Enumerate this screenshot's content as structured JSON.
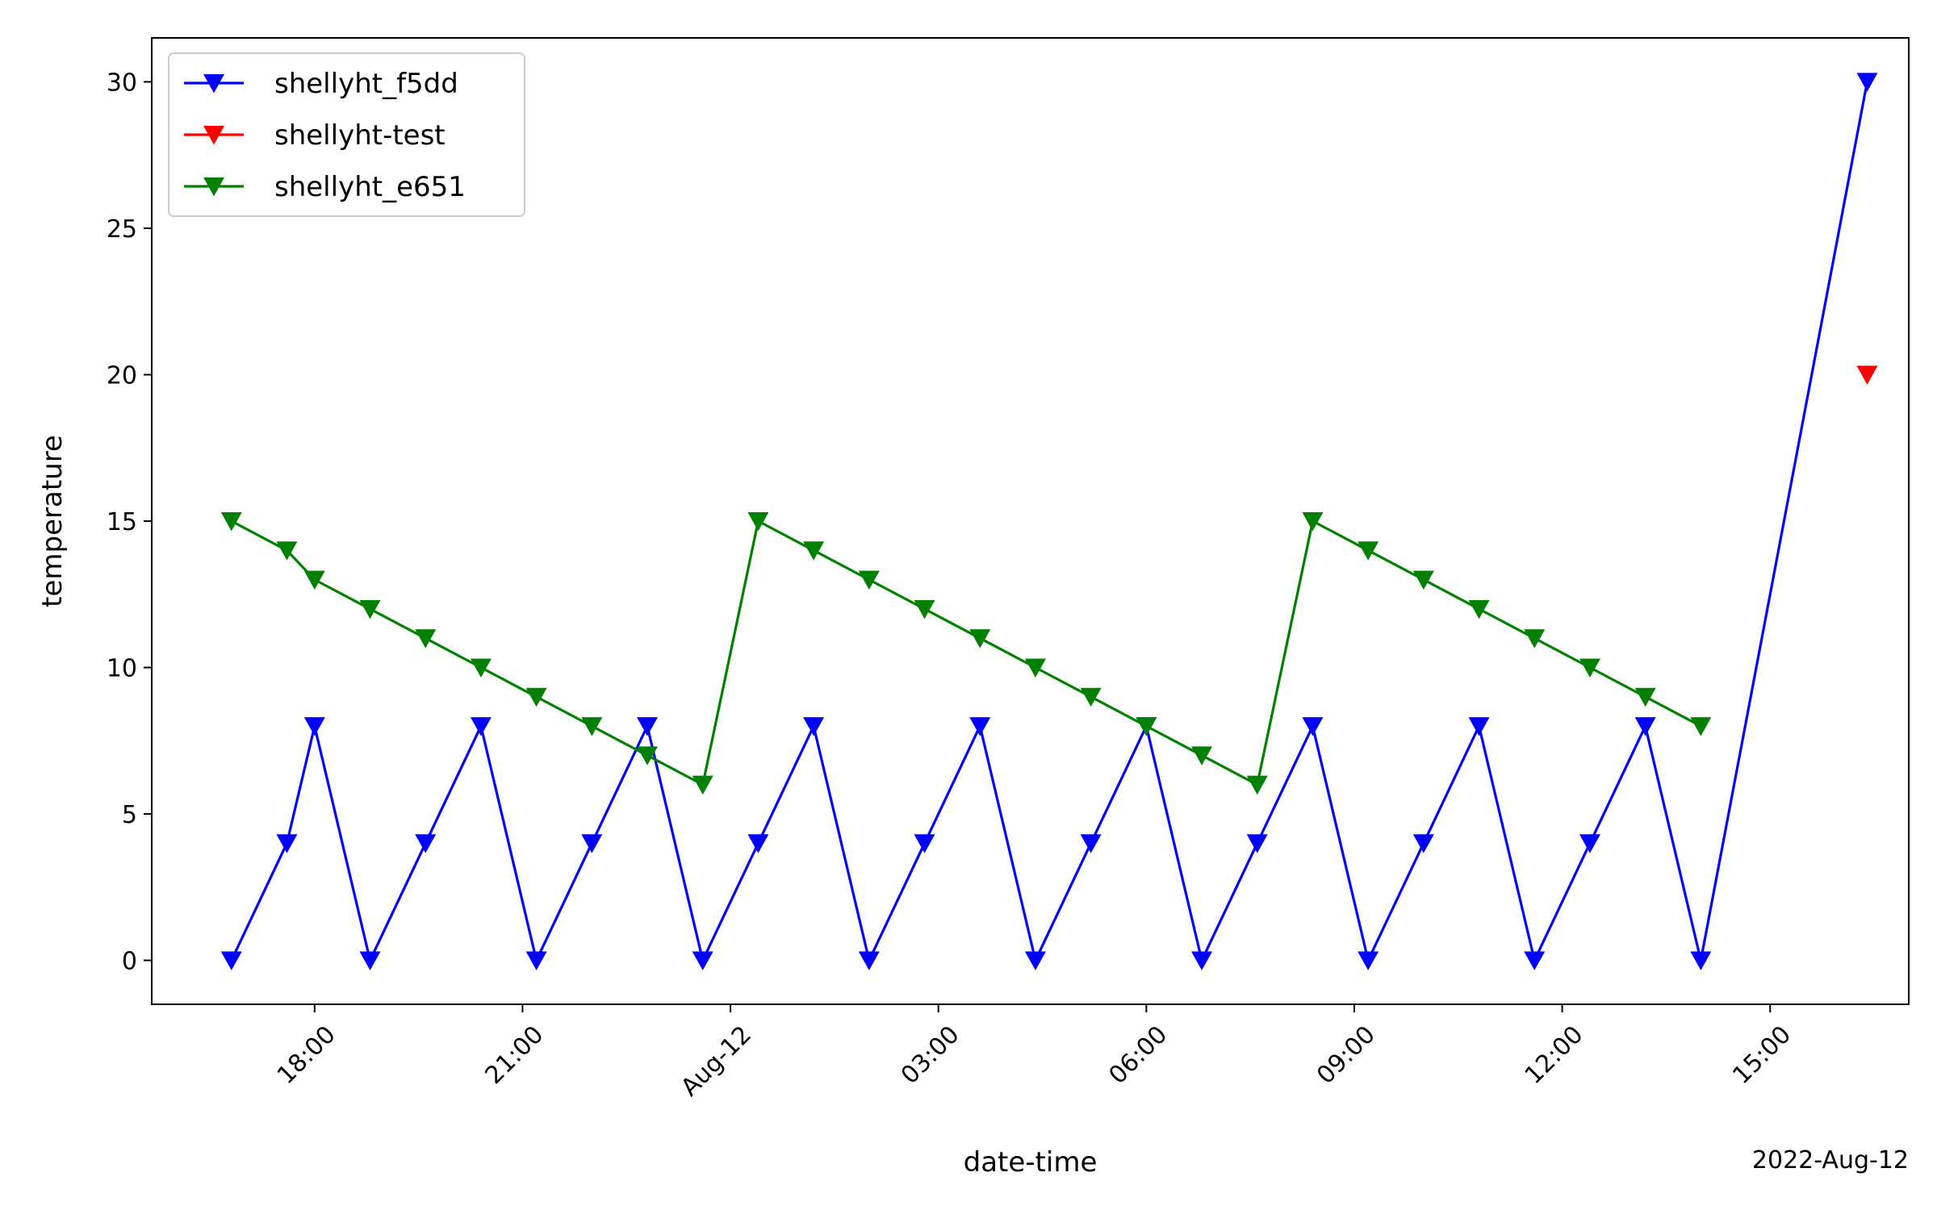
{
  "chart_data": {
    "type": "line",
    "xlabel": "date-time",
    "ylabel": "temperature",
    "x_offset_label": "2022-Aug-12",
    "xlim": [
      "2022-08-11 15:39",
      "2022-08-12 17:00"
    ],
    "ylim": [
      -1.5,
      31.5
    ],
    "grid": false,
    "legend_position": "upper-left",
    "x_ticks": [
      {
        "time": "2022-08-11 18:00",
        "label": "18:00"
      },
      {
        "time": "2022-08-11 21:00",
        "label": "21:00"
      },
      {
        "time": "2022-08-12 00:00",
        "label": "Aug-12"
      },
      {
        "time": "2022-08-12 03:00",
        "label": "03:00"
      },
      {
        "time": "2022-08-12 06:00",
        "label": "06:00"
      },
      {
        "time": "2022-08-12 09:00",
        "label": "09:00"
      },
      {
        "time": "2022-08-12 12:00",
        "label": "12:00"
      },
      {
        "time": "2022-08-12 15:00",
        "label": "15:00"
      }
    ],
    "y_ticks": [
      0,
      5,
      10,
      15,
      20,
      25,
      30
    ],
    "series": [
      {
        "name": "shellyht_f5dd",
        "color": "#0000ff",
        "marker": "triangle-down",
        "line": true,
        "x": [
          "2022-08-11 16:48",
          "2022-08-11 17:36",
          "2022-08-11 18:00",
          "2022-08-11 18:48",
          "2022-08-11 19:36",
          "2022-08-11 20:24",
          "2022-08-11 21:12",
          "2022-08-11 22:00",
          "2022-08-11 22:48",
          "2022-08-11 23:36",
          "2022-08-12 00:24",
          "2022-08-12 01:12",
          "2022-08-12 02:00",
          "2022-08-12 02:48",
          "2022-08-12 03:36",
          "2022-08-12 04:24",
          "2022-08-12 05:12",
          "2022-08-12 06:00",
          "2022-08-12 06:48",
          "2022-08-12 07:36",
          "2022-08-12 08:24",
          "2022-08-12 09:12",
          "2022-08-12 10:00",
          "2022-08-12 10:48",
          "2022-08-12 11:36",
          "2022-08-12 12:24",
          "2022-08-12 13:12",
          "2022-08-12 14:00",
          "2022-08-12 16:24"
        ],
        "y": [
          0,
          4,
          8,
          0,
          4,
          8,
          0,
          4,
          8,
          0,
          4,
          8,
          0,
          4,
          8,
          0,
          4,
          8,
          0,
          4,
          8,
          0,
          4,
          8,
          0,
          4,
          8,
          0,
          30
        ]
      },
      {
        "name": "shellyht-test",
        "color": "#ff0000",
        "marker": "triangle-down",
        "line": false,
        "x": [
          "2022-08-12 16:24"
        ],
        "y": [
          20
        ]
      },
      {
        "name": "shellyht_e651",
        "color": "#008000",
        "marker": "triangle-down",
        "line": true,
        "x": [
          "2022-08-11 16:48",
          "2022-08-11 17:36",
          "2022-08-11 18:00",
          "2022-08-11 18:48",
          "2022-08-11 19:36",
          "2022-08-11 20:24",
          "2022-08-11 21:12",
          "2022-08-11 22:00",
          "2022-08-11 22:48",
          "2022-08-11 23:36",
          "2022-08-12 00:24",
          "2022-08-12 01:12",
          "2022-08-12 02:00",
          "2022-08-12 02:48",
          "2022-08-12 03:36",
          "2022-08-12 04:24",
          "2022-08-12 05:12",
          "2022-08-12 06:00",
          "2022-08-12 06:48",
          "2022-08-12 07:36",
          "2022-08-12 08:24",
          "2022-08-12 09:12",
          "2022-08-12 10:00",
          "2022-08-12 10:48",
          "2022-08-12 11:36",
          "2022-08-12 12:24",
          "2022-08-12 13:12",
          "2022-08-12 14:00"
        ],
        "y": [
          15,
          14,
          13,
          12,
          11,
          10,
          9,
          8,
          7,
          6,
          15,
          14,
          13,
          12,
          11,
          10,
          9,
          8,
          7,
          6,
          15,
          14,
          13,
          12,
          11,
          10,
          9,
          8
        ]
      }
    ]
  }
}
